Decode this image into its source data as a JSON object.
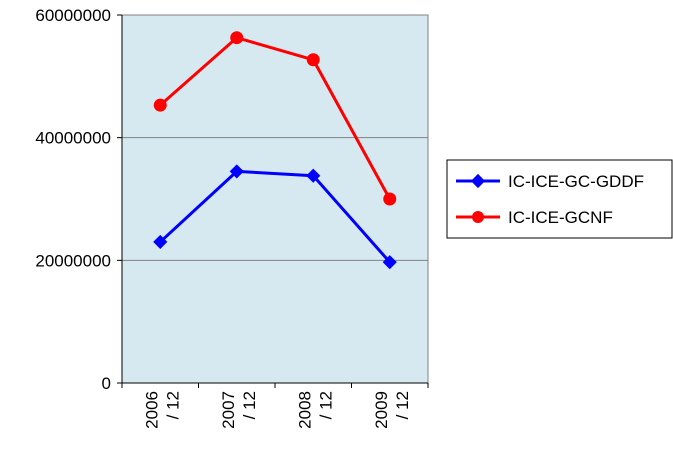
{
  "chart_data": {
    "type": "line",
    "title": "",
    "xlabel": "",
    "ylabel": "",
    "categories": [
      "2006 / 12",
      "2007 / 12",
      "2008 / 12",
      "2009 / 12"
    ],
    "category_lines": [
      [
        "2006",
        "/ 12"
      ],
      [
        "2007",
        "/ 12"
      ],
      [
        "2008",
        "/ 12"
      ],
      [
        "2009",
        "/ 12"
      ]
    ],
    "ylim": [
      0,
      60000000
    ],
    "yticks": [
      0,
      20000000,
      40000000,
      60000000
    ],
    "ytick_labels": [
      "0",
      "20000000",
      "40000000",
      "60000000"
    ],
    "grid": true,
    "legend_position": "right",
    "plot_background": "#d6e9f1",
    "series": [
      {
        "name": "IC-ICE-GC-GDDF",
        "color": "#0000ff",
        "marker": "diamond",
        "values": [
          23000000,
          34500000,
          33800000,
          19700000
        ]
      },
      {
        "name": "IC-ICE-GCNF",
        "color": "#ff0000",
        "marker": "circle",
        "values": [
          45300000,
          56300000,
          52700000,
          30000000
        ]
      }
    ]
  }
}
